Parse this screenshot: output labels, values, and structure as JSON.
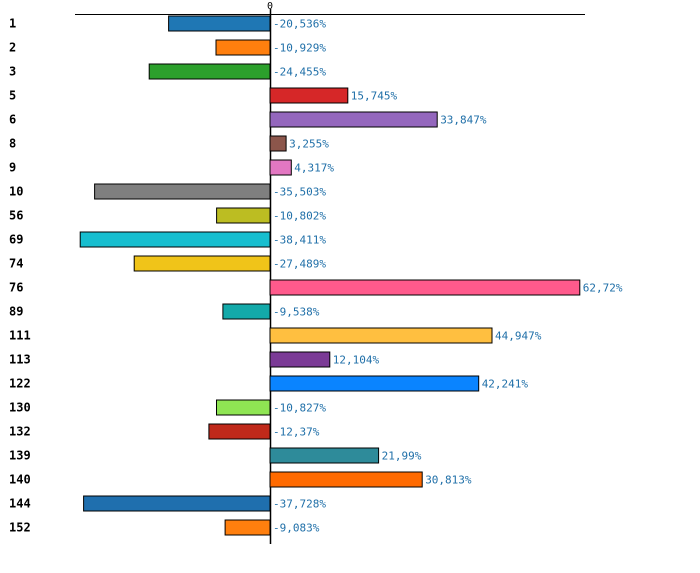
{
  "chart_data": {
    "type": "bar",
    "orientation": "horizontal",
    "title": "",
    "xlabel": "",
    "ylabel": "",
    "grid": false,
    "xlim": [
      -44.5,
      64.7
    ],
    "x_ticks": [
      0
    ],
    "x_tick_labels": [
      "0"
    ],
    "categories": [
      "1",
      "2",
      "3",
      "5",
      "6",
      "8",
      "9",
      "10",
      "56",
      "69",
      "74",
      "76",
      "89",
      "111",
      "113",
      "122",
      "130",
      "132",
      "139",
      "140",
      "144",
      "152"
    ],
    "values": [
      -20.536,
      -10.929,
      -24.455,
      15.745,
      33.847,
      3.255,
      4.317,
      -35.503,
      -10.802,
      -38.411,
      -27.489,
      62.72,
      -9.538,
      44.947,
      12.104,
      42.241,
      -10.827,
      -12.37,
      21.99,
      30.813,
      -37.728,
      -9.083
    ],
    "value_labels": [
      "-20,536%",
      "-10,929%",
      "-24,455%",
      "15,745%",
      "33,847%",
      "3,255%",
      "4,317%",
      "-35,503%",
      "-10,802%",
      "-38,411%",
      "-27,489%",
      "62,72%",
      "-9,538%",
      "44,947%",
      "12,104%",
      "42,241%",
      "-10,827%",
      "-12,37%",
      "21,99%",
      "30,813%",
      "-37,728%",
      "-9,083%"
    ],
    "colors": [
      "#1f77b4",
      "#ff7f0e",
      "#2ca02c",
      "#d62728",
      "#9467bd",
      "#8c564b",
      "#e377c2",
      "#7f7f7f",
      "#bcbd22",
      "#17becf",
      "#f0c419",
      "#ff5a8c",
      "#13a9a9",
      "#ffbf40",
      "#7b3a96",
      "#0a84ff",
      "#8fe553",
      "#c0291a",
      "#2e8b9a",
      "#ff6a00",
      "#1f6fae",
      "#ff7f0e"
    ]
  }
}
